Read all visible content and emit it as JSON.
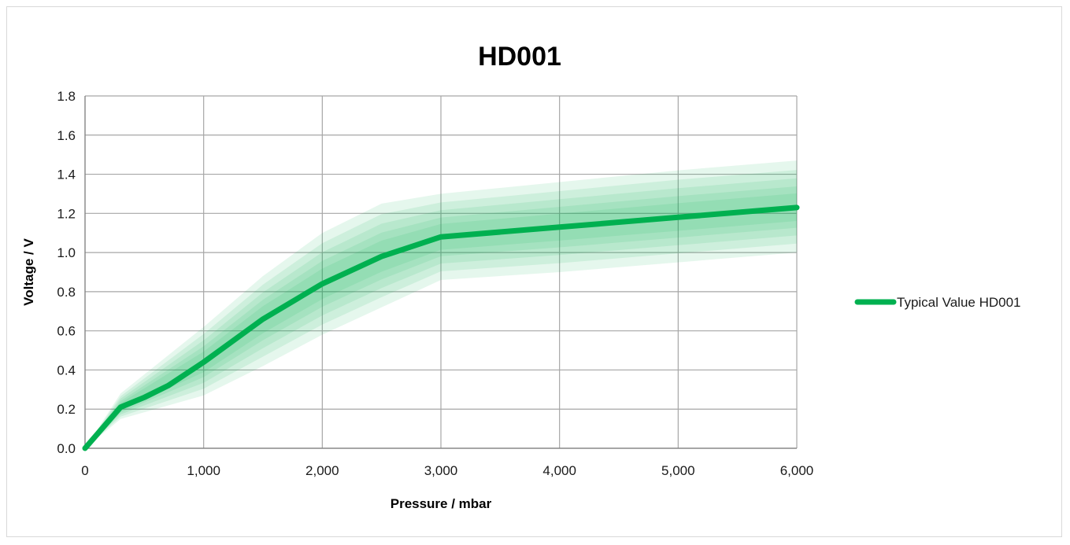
{
  "chart_data": {
    "type": "line",
    "title": "HD001",
    "xlabel": "Pressure / mbar",
    "ylabel": "Voltage / V",
    "xlim": [
      0,
      6000
    ],
    "ylim": [
      0,
      1.8
    ],
    "x_ticks": [
      0,
      1000,
      2000,
      3000,
      4000,
      5000,
      6000
    ],
    "x_tick_labels": [
      "0",
      "1,000",
      "2,000",
      "3,000",
      "4,000",
      "5,000",
      "6,000"
    ],
    "y_ticks": [
      0,
      0.2,
      0.4,
      0.6,
      0.8,
      1.0,
      1.2,
      1.4,
      1.6,
      1.8
    ],
    "y_tick_labels": [
      "0.0",
      "0.2",
      "0.4",
      "0.6",
      "0.8",
      "1.0",
      "1.2",
      "1.4",
      "1.6",
      "1.8"
    ],
    "grid": true,
    "legend_position": "right",
    "series": [
      {
        "name": "Typical Value HD001",
        "color": "#00b050",
        "x": [
          0,
          300,
          500,
          700,
          1000,
          1500,
          2000,
          2500,
          3000,
          4000,
          5000,
          6000
        ],
        "y": [
          0.0,
          0.21,
          0.26,
          0.32,
          0.44,
          0.66,
          0.84,
          0.98,
          1.08,
          1.13,
          1.18,
          1.23
        ]
      }
    ],
    "tolerance_band": {
      "color": "#00b050",
      "x": [
        0,
        300,
        1000,
        1500,
        2000,
        2500,
        3000,
        4000,
        5000,
        6000
      ],
      "upper": [
        0.0,
        0.28,
        0.62,
        0.88,
        1.1,
        1.25,
        1.3,
        1.36,
        1.42,
        1.47
      ],
      "lower": [
        0.0,
        0.15,
        0.27,
        0.42,
        0.58,
        0.72,
        0.86,
        0.9,
        0.95,
        1.0
      ]
    }
  }
}
